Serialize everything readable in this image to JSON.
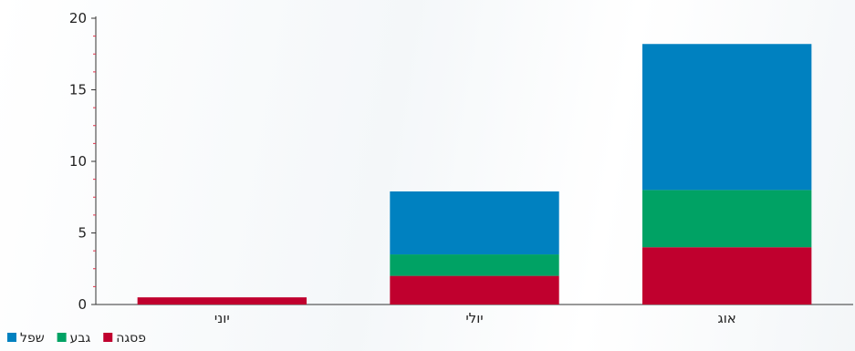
{
  "chart_data": {
    "type": "bar",
    "stacked": true,
    "categories": [
      "יוני",
      "יולי",
      "אוג"
    ],
    "series": [
      {
        "name": "פסגה",
        "color": "#c0002e",
        "values": [
          0.5,
          2,
          4
        ]
      },
      {
        "name": "גבע",
        "color": "#00a264",
        "values": [
          0,
          1.5,
          4
        ]
      },
      {
        "name": "שפל",
        "color": "#0081c0",
        "values": [
          0,
          4.4,
          10.2
        ]
      }
    ],
    "ylim": [
      0,
      20
    ],
    "yticks": [
      0,
      5,
      10,
      15,
      20
    ],
    "grid": false,
    "legend_position": "bottom-left"
  }
}
